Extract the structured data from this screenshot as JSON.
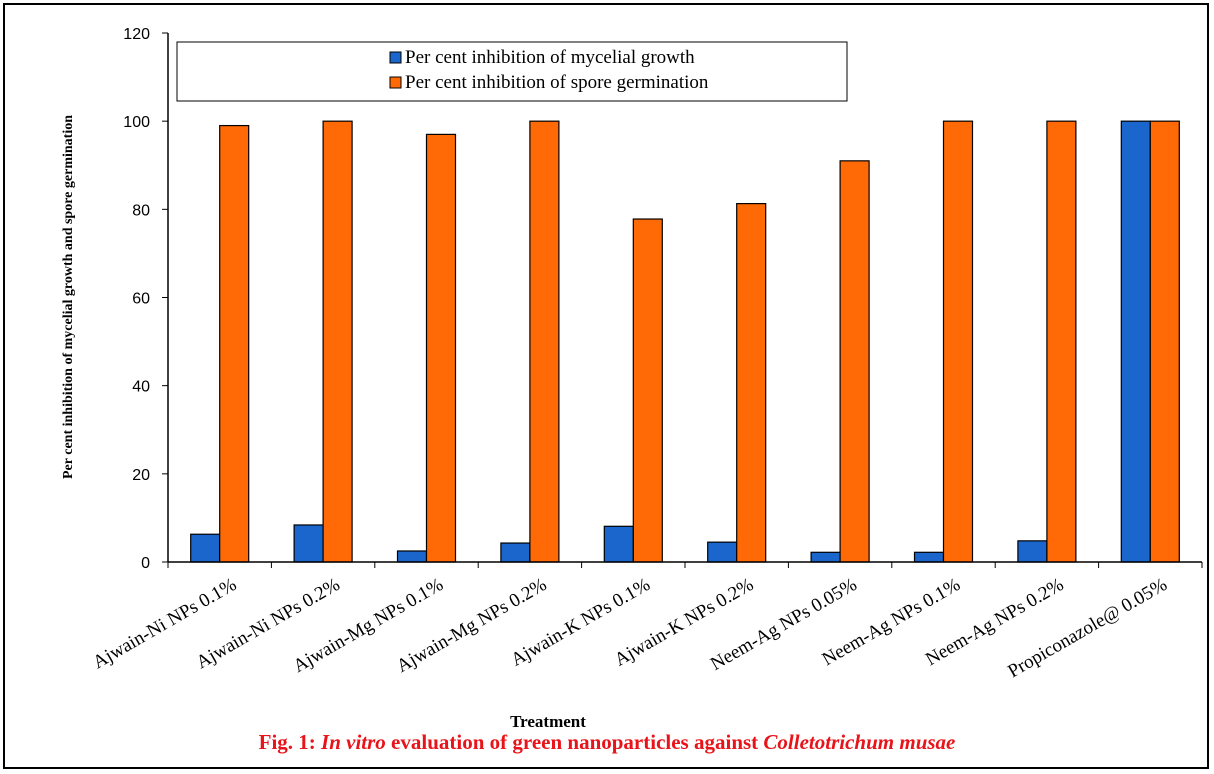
{
  "chart_data": {
    "type": "bar",
    "title": "",
    "xlabel": "Treatment",
    "ylabel": "Per cent inhibition of mycelial growth and spore germination",
    "ylim": [
      0,
      120
    ],
    "yticks": [
      0,
      20,
      40,
      60,
      80,
      100,
      120
    ],
    "grid": false,
    "legend_position": "top",
    "categories": [
      "Ajwain-Ni NPs 0.1%",
      "Ajwain-Ni NPs 0.2%",
      "Ajwain-Mg NPs 0.1%",
      "Ajwain-Mg NPs 0.2%",
      "Ajwain-K NPs 0.1%",
      "Ajwain-K NPs 0.2%",
      "Neem-Ag NPs 0.05%",
      "Neem-Ag NPs 0.1%",
      "Neem-Ag NPs 0.2%",
      "Propiconazole@ 0.05%"
    ],
    "series": [
      {
        "name": "Per cent inhibition of mycelial growth",
        "color": "#1a66cc",
        "values": [
          6.3,
          8.4,
          2.5,
          4.3,
          8.1,
          4.5,
          2.2,
          2.2,
          4.8,
          100
        ]
      },
      {
        "name": "Per cent inhibition of spore germination",
        "color": "#ff6a06",
        "values": [
          99,
          100,
          97,
          100,
          77.8,
          81.3,
          91,
          100,
          100,
          100
        ]
      }
    ]
  },
  "caption": {
    "prefix": "Fig. 1: ",
    "italic1": "In vitro",
    "middle": " evaluation of green nanoparticles against ",
    "italic2": "Colletotrichum musae"
  }
}
